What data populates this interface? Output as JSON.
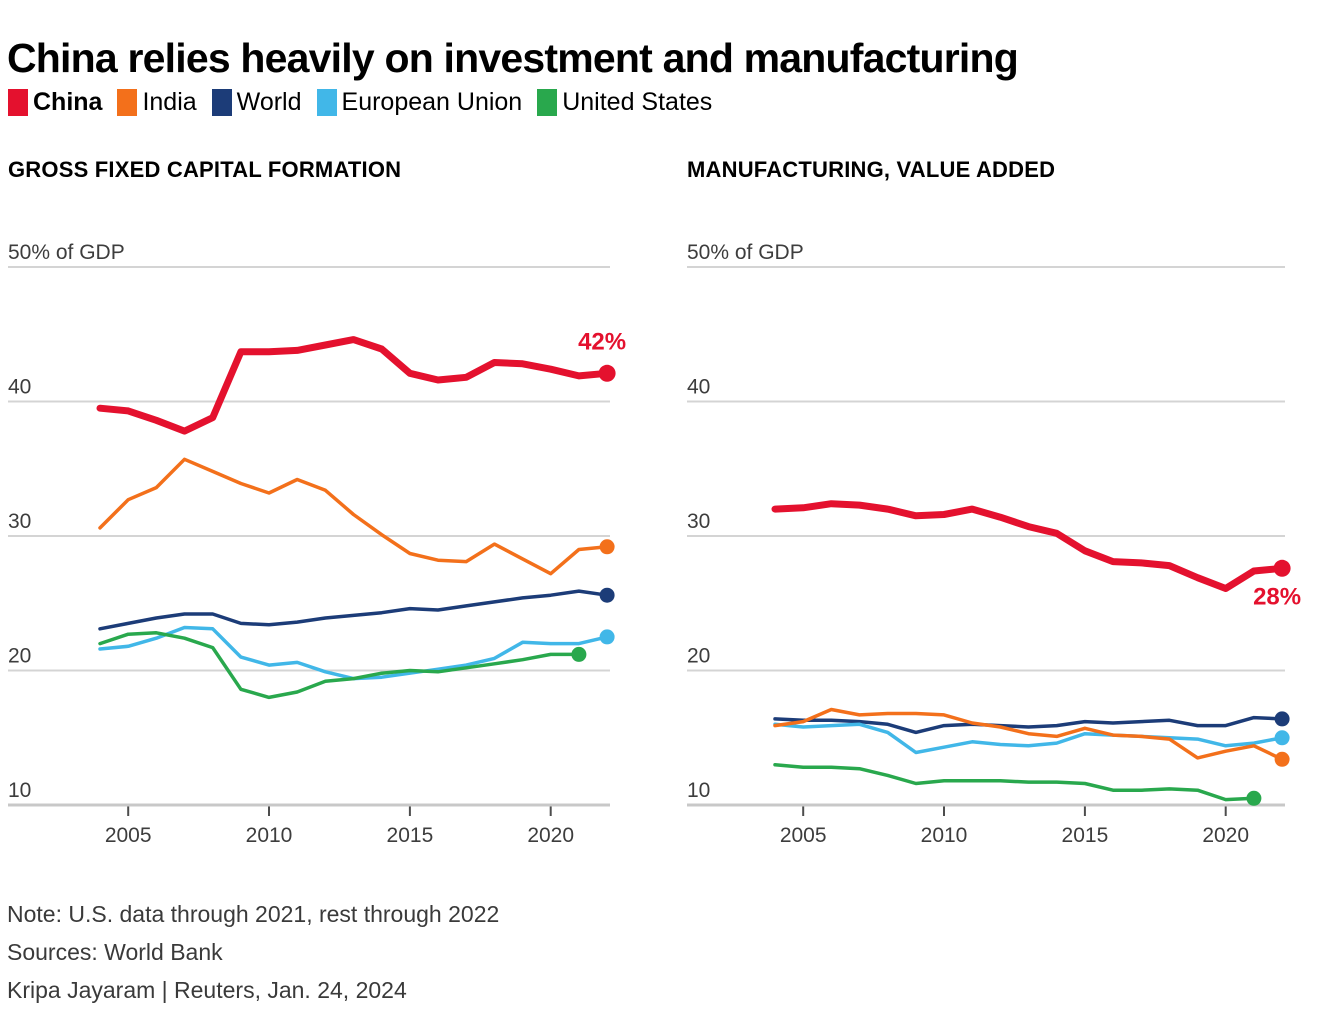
{
  "header": {
    "title": "China relies heavily on investment and manufacturing"
  },
  "legend": {
    "items": [
      {
        "label": "China",
        "color": "#e4112e",
        "bold": true
      },
      {
        "label": "India",
        "color": "#f3701b",
        "bold": false
      },
      {
        "label": "World",
        "color": "#1c3c78",
        "bold": false
      },
      {
        "label": "European Union",
        "color": "#41b7e8",
        "bold": false
      },
      {
        "label": "United States",
        "color": "#29a84d",
        "bold": false
      }
    ]
  },
  "chart_data": [
    {
      "type": "line",
      "title": "GROSS FIXED CAPITAL FORMATION",
      "ylabel": "50% of GDP",
      "ylim": [
        10,
        50
      ],
      "y_gridlines": [
        50,
        40,
        30,
        20,
        10
      ],
      "grid": true,
      "x_start": 2004,
      "x_end": 2022,
      "x_ticks": [
        2005,
        2010,
        2015,
        2020
      ],
      "end_label": {
        "text": "42%",
        "position": "above",
        "color": "#e4112e"
      },
      "series": [
        {
          "name": "China",
          "color": "#e4112e",
          "emphasized": true,
          "values": [
            39.5,
            39.3,
            38.6,
            37.8,
            38.8,
            43.7,
            43.7,
            43.8,
            44.2,
            44.6,
            43.9,
            42.1,
            41.6,
            41.8,
            42.9,
            42.8,
            42.4,
            41.9,
            42.1
          ]
        },
        {
          "name": "India",
          "color": "#f3701b",
          "emphasized": false,
          "values": [
            30.6,
            32.7,
            33.6,
            35.7,
            34.8,
            33.9,
            33.2,
            34.2,
            33.4,
            31.6,
            30.1,
            28.7,
            28.2,
            28.1,
            29.4,
            28.3,
            27.2,
            29.0,
            29.2
          ]
        },
        {
          "name": "World",
          "color": "#1c3c78",
          "emphasized": false,
          "values": [
            23.1,
            23.5,
            23.9,
            24.2,
            24.2,
            23.5,
            23.4,
            23.6,
            23.9,
            24.1,
            24.3,
            24.6,
            24.5,
            24.8,
            25.1,
            25.4,
            25.6,
            25.9,
            25.6
          ]
        },
        {
          "name": "European Union",
          "color": "#41b7e8",
          "emphasized": false,
          "values": [
            21.6,
            21.8,
            22.4,
            23.2,
            23.1,
            21.0,
            20.4,
            20.6,
            19.9,
            19.4,
            19.5,
            19.8,
            20.1,
            20.4,
            20.9,
            22.1,
            22.0,
            22.0,
            22.5
          ]
        },
        {
          "name": "United States",
          "color": "#29a84d",
          "emphasized": false,
          "values": [
            22.0,
            22.7,
            22.8,
            22.4,
            21.7,
            18.6,
            18.0,
            18.4,
            19.2,
            19.4,
            19.8,
            20.0,
            19.9,
            20.2,
            20.5,
            20.8,
            21.2,
            21.2
          ]
        }
      ]
    },
    {
      "type": "line",
      "title": "MANUFACTURING, VALUE ADDED",
      "ylabel": "50% of GDP",
      "ylim": [
        10,
        50
      ],
      "y_gridlines": [
        50,
        40,
        30,
        20,
        10
      ],
      "grid": true,
      "x_start": 2004,
      "x_end": 2022,
      "x_ticks": [
        2005,
        2010,
        2015,
        2020
      ],
      "end_label": {
        "text": "28%",
        "position": "below",
        "color": "#e4112e"
      },
      "series": [
        {
          "name": "China",
          "color": "#e4112e",
          "emphasized": true,
          "values": [
            32.0,
            32.1,
            32.4,
            32.3,
            32.0,
            31.5,
            31.6,
            32.0,
            31.4,
            30.7,
            30.2,
            28.9,
            28.1,
            28.0,
            27.8,
            26.9,
            26.1,
            27.4,
            27.6
          ]
        },
        {
          "name": "India",
          "color": "#f3701b",
          "emphasized": false,
          "values": [
            15.9,
            16.2,
            17.1,
            16.7,
            16.8,
            16.8,
            16.7,
            16.1,
            15.8,
            15.3,
            15.1,
            15.7,
            15.2,
            15.1,
            14.9,
            13.5,
            14.0,
            14.4,
            13.4
          ]
        },
        {
          "name": "World",
          "color": "#1c3c78",
          "emphasized": false,
          "values": [
            16.4,
            16.3,
            16.3,
            16.2,
            16.0,
            15.4,
            15.9,
            16.0,
            15.9,
            15.8,
            15.9,
            16.2,
            16.1,
            16.2,
            16.3,
            15.9,
            15.9,
            16.5,
            16.4
          ]
        },
        {
          "name": "European Union",
          "color": "#41b7e8",
          "emphasized": false,
          "values": [
            16.0,
            15.8,
            15.9,
            16.0,
            15.4,
            13.9,
            14.3,
            14.7,
            14.5,
            14.4,
            14.6,
            15.3,
            15.2,
            15.1,
            15.0,
            14.9,
            14.4,
            14.6,
            15.0
          ]
        },
        {
          "name": "United States",
          "color": "#29a84d",
          "emphasized": false,
          "values": [
            13.0,
            12.8,
            12.8,
            12.7,
            12.2,
            11.6,
            11.8,
            11.8,
            11.8,
            11.7,
            11.7,
            11.6,
            11.1,
            11.1,
            11.2,
            11.1,
            10.4,
            10.5
          ]
        }
      ]
    }
  ],
  "footer": {
    "note": "Note: U.S. data through 2021, rest through 2022",
    "sources": "Sources: World Bank",
    "byline": "Kripa Jayaram  |  Reuters, Jan. 24, 2024"
  }
}
